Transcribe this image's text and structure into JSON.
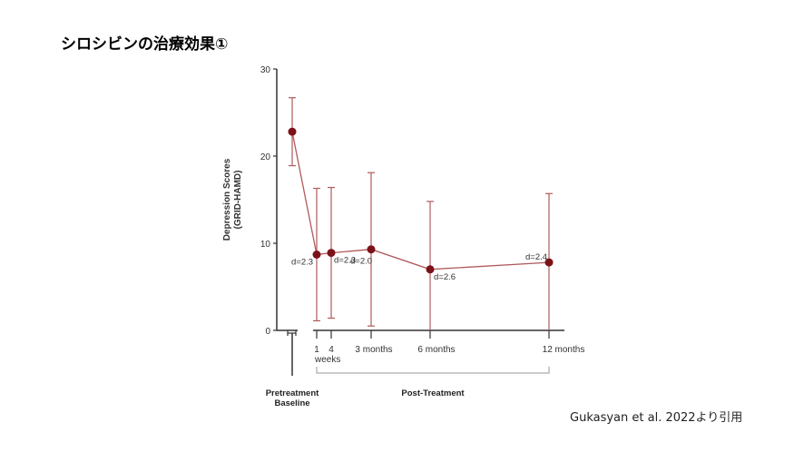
{
  "slide": {
    "title": "シロシビンの治療効果①",
    "citation": "Gukasyan et al. 2022より引用"
  },
  "colors": {
    "series": "#7b1218",
    "errorbar": "#b05a5a",
    "axis": "#333333"
  },
  "chart_data": {
    "type": "line",
    "ylabel_line1": "Depression Scores",
    "ylabel_line2": "(GRID-HAMD)",
    "ylim": [
      0,
      30
    ],
    "yticks": [
      "0",
      "10",
      "20",
      "30"
    ],
    "xtick_labels": [
      "1",
      "4",
      "weeks",
      "3 months",
      "6 months",
      "12 months"
    ],
    "groups": [
      "Pretreatment Baseline",
      "Post-Treatment"
    ],
    "group_labels": {
      "pre_line1": "Pretreatment",
      "pre_line2": "Baseline",
      "post": "Post-Treatment"
    },
    "series": [
      {
        "points": [
          {
            "x": "Baseline",
            "y": 22.8,
            "lo": 18.9,
            "hi": 26.7,
            "d": ""
          },
          {
            "x": "1 week",
            "y": 8.7,
            "lo": 1.1,
            "hi": 16.3,
            "d": "d=2.3"
          },
          {
            "x": "4 weeks",
            "y": 8.9,
            "lo": 1.4,
            "hi": 16.4,
            "d": "d=2.3"
          },
          {
            "x": "3 months",
            "y": 9.3,
            "lo": 0.5,
            "hi": 18.1,
            "d": "d=2.0"
          },
          {
            "x": "6 months",
            "y": 7.0,
            "lo": -0.8,
            "hi": 14.8,
            "d": "d=2.6"
          },
          {
            "x": "12 months",
            "y": 7.8,
            "lo": -0.1,
            "hi": 15.7,
            "d": "d=2.4"
          }
        ]
      }
    ]
  }
}
